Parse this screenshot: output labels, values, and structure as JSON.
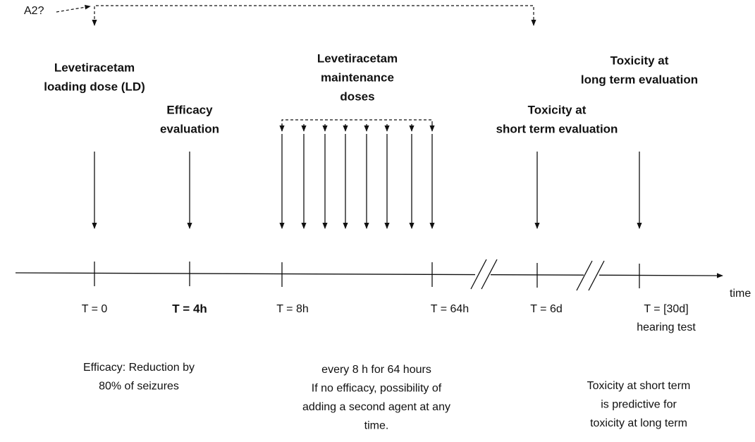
{
  "a2_label": "A2?",
  "events": [
    {
      "lines": [
        "Levetiracetam",
        "loading dose (LD)"
      ]
    },
    {
      "lines": [
        "Efficacy",
        "evaluation"
      ]
    },
    {
      "lines": [
        "Levetiracetam",
        "maintenance",
        "doses"
      ]
    },
    {
      "lines": [
        "Toxicity at",
        "short term evaluation"
      ]
    },
    {
      "lines": [
        "Toxicity at",
        "long term evaluation"
      ]
    }
  ],
  "axis_label": "time",
  "time_points": [
    {
      "lines": [
        "T = 0"
      ]
    },
    {
      "lines": [
        "T = 4h"
      ]
    },
    {
      "lines": [
        "T = 8h"
      ]
    },
    {
      "lines": [
        "T = 64h"
      ]
    },
    {
      "lines": [
        "T = 6d"
      ]
    },
    {
      "lines": [
        "T = [30d]",
        "hearing test"
      ]
    }
  ],
  "notes": [
    {
      "lines": [
        "Efficacy: Reduction by",
        "80% of seizures"
      ]
    },
    {
      "lines": [
        "every 8 h for 64 hours",
        "If no efficacy, possibility of",
        "adding a second agent at any",
        "time."
      ]
    },
    {
      "lines": [
        "Toxicity at short term",
        "is predictive for",
        "toxicity at long term"
      ]
    }
  ]
}
